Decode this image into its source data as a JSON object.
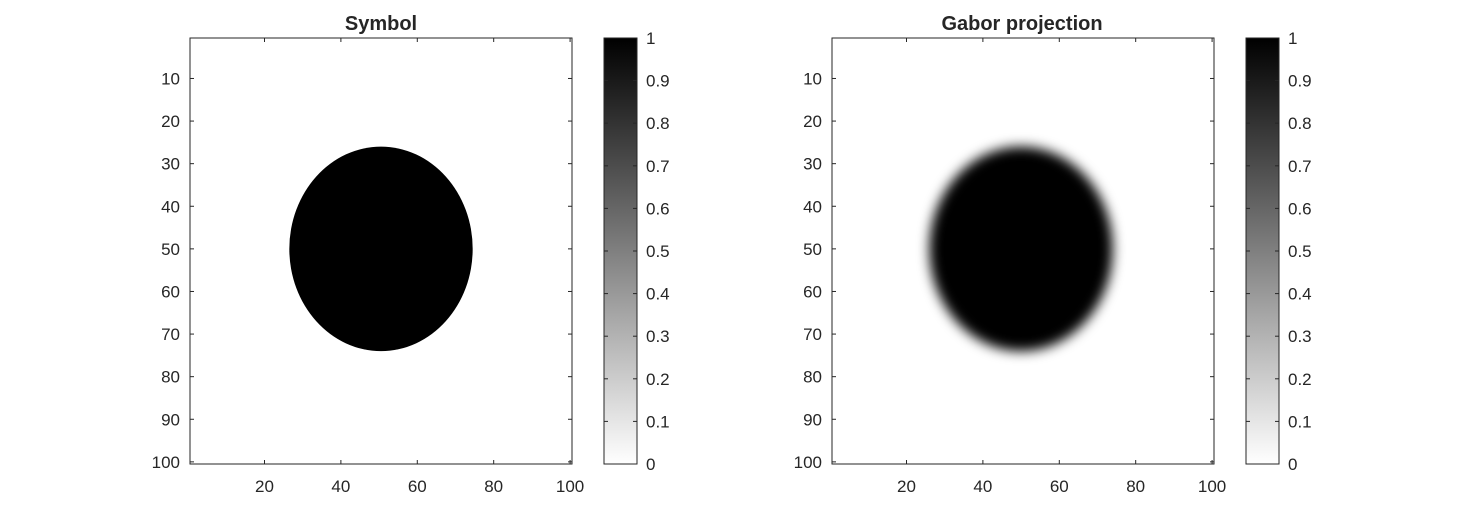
{
  "chart_data": [
    {
      "type": "heatmap",
      "title": "Symbol",
      "edge": "sharp",
      "colormap": "gray-reversed",
      "x_range": [
        0.5,
        100.5
      ],
      "y_range": [
        0.5,
        100.5
      ],
      "y_direction": "reverse",
      "disk": {
        "center_x": 50.5,
        "center_y": 50,
        "radius_x": 24,
        "radius_y": 24,
        "value_inside": 1,
        "value_outside": 0
      },
      "x_tick_labels": [
        "20",
        "40",
        "60",
        "80",
        "100"
      ],
      "y_tick_labels": [
        "10",
        "20",
        "30",
        "40",
        "50",
        "60",
        "70",
        "80",
        "90",
        "100"
      ],
      "colorbar": {
        "range": [
          0,
          1
        ],
        "tick_labels": [
          "0",
          "0.1",
          "0.2",
          "0.3",
          "0.4",
          "0.5",
          "0.6",
          "0.7",
          "0.8",
          "0.9",
          "1"
        ]
      }
    },
    {
      "type": "heatmap",
      "title": "Gabor projection",
      "edge": "blurred",
      "colormap": "gray-reversed",
      "x_range": [
        0.5,
        100.5
      ],
      "y_range": [
        0.5,
        100.5
      ],
      "y_direction": "reverse",
      "disk": {
        "center_x": 50,
        "center_y": 50,
        "radius_x": 24,
        "radius_y": 24,
        "value_inside": 1,
        "value_outside": 0
      },
      "x_tick_labels": [
        "20",
        "40",
        "60",
        "80",
        "100"
      ],
      "y_tick_labels": [
        "10",
        "20",
        "30",
        "40",
        "50",
        "60",
        "70",
        "80",
        "90",
        "100"
      ],
      "colorbar": {
        "range": [
          0,
          1
        ],
        "tick_labels": [
          "0",
          "0.1",
          "0.2",
          "0.3",
          "0.4",
          "0.5",
          "0.6",
          "0.7",
          "0.8",
          "0.9",
          "1"
        ]
      }
    }
  ]
}
